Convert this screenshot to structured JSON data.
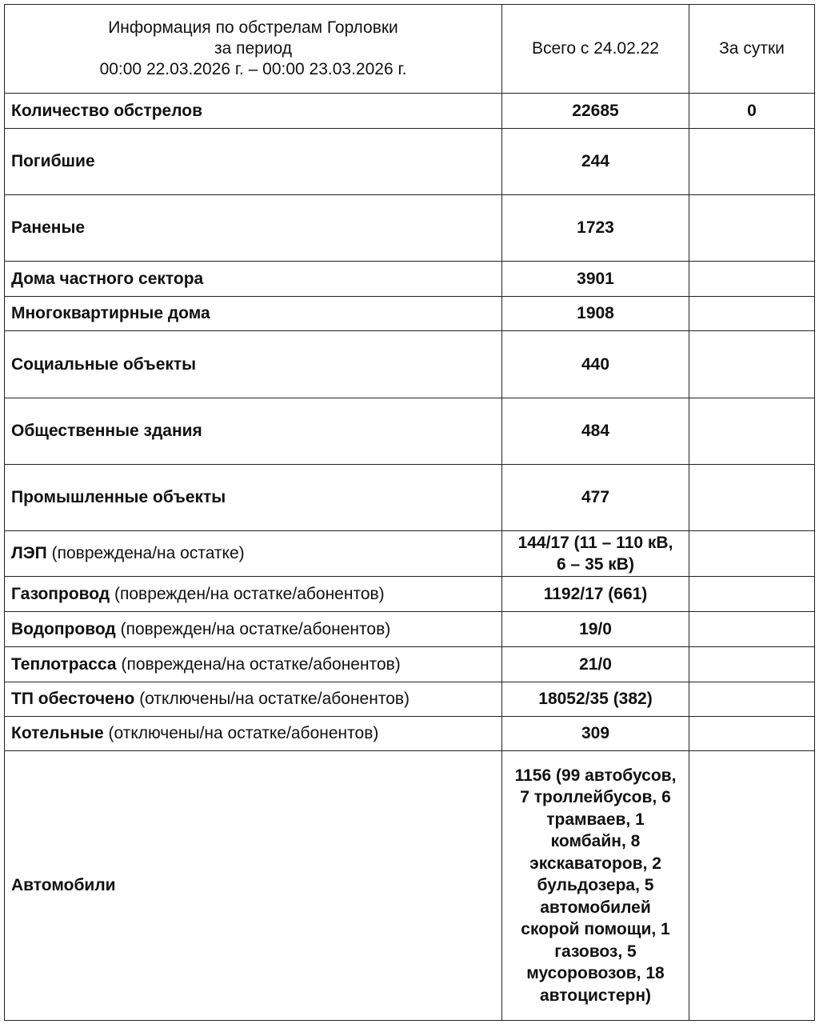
{
  "header": {
    "title_lines": [
      "Информация по обстрелам Горловки",
      "за период",
      "00:00 22.03.2026 г. – 00:00 23.03.2026 г."
    ],
    "col_total": "Всего с 24.02.22",
    "col_daily": "За сутки"
  },
  "table": {
    "rows": [
      {
        "name": "Количество обстрелов",
        "total": "22685",
        "daily": "0"
      },
      {
        "name": "Погибшие",
        "total": "244"
      },
      {
        "name": "Раненые",
        "total": "1723"
      },
      {
        "name": "Дома частного сектора",
        "total": "3901"
      },
      {
        "name": "Многоквартирные дома",
        "total": "1908"
      },
      {
        "name": "Социальные объекты",
        "total": "440"
      },
      {
        "name": "Общественные здания",
        "total": "484"
      },
      {
        "name": "Промышленные объекты",
        "total": "477"
      },
      {
        "name": "ЛЭП",
        "note": "(повреждена/на остатке)",
        "total": "144/17 (11 – 110 кВ, 6 – 35 кВ)"
      },
      {
        "name": "Газопровод",
        "note": "(поврежден/на остатке/абонентов)",
        "total": "1192/17 (661)"
      },
      {
        "name": "Водопровод",
        "note": "(поврежден/на остатке/абонентов)",
        "total": "19/0"
      },
      {
        "name": "Теплотрасса",
        "note": "(повреждена/на остатке/абонентов)",
        "total": "21/0"
      },
      {
        "name": "ТП обесточено",
        "note": "(отключены/на остатке/абонентов)",
        "total": "18052/35 (382)"
      },
      {
        "name": "Котельные",
        "note": "(отключены/на остатке/абонентов)",
        "total": "309"
      },
      {
        "name": "Автомобили",
        "total": "1156 (99 автобусов, 7 троллейбусов, 6 трамваев, 1 комбайн, 8 экскаваторов, 2 бульдозера, 5 автомобилей скорой помощи, 1 газовоз, 5 мусоровозов, 18 автоцистерн)"
      }
    ]
  }
}
